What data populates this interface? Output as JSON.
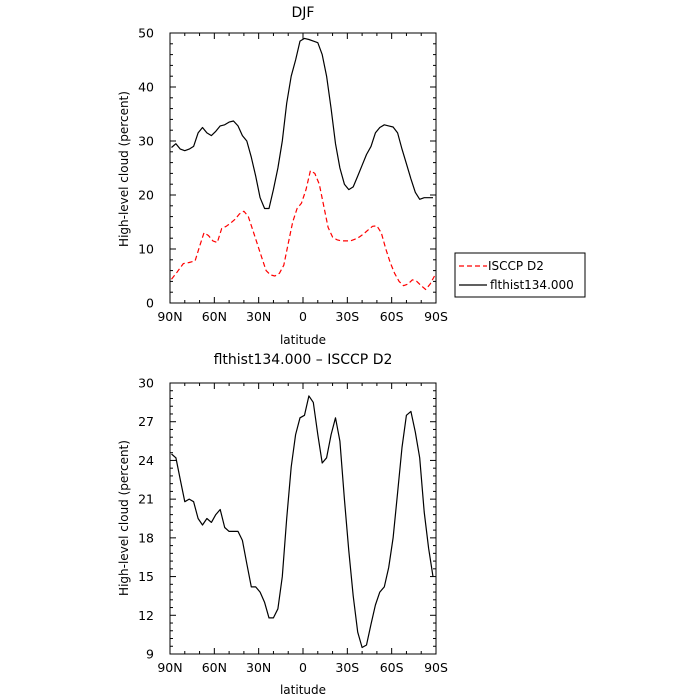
{
  "chart_data": [
    {
      "type": "line",
      "title": "DJF",
      "xlabel": "latitude",
      "ylabel": "High-level cloud (percent)",
      "xlim": [
        90,
        -90
      ],
      "ylim": [
        0,
        50
      ],
      "xticks": [
        90,
        60,
        30,
        0,
        -30,
        -60,
        -90
      ],
      "xtick_labels": [
        "90N",
        "60N",
        "30N",
        "0",
        "30S",
        "60S",
        "90S"
      ],
      "yticks": [
        0,
        10,
        20,
        30,
        40,
        50
      ],
      "ytick_labels": [
        "0",
        "10",
        "20",
        "30",
        "40",
        "50"
      ],
      "grid": false,
      "legend": "right",
      "series": [
        {
          "name": "ISCCP D2",
          "color": "#ff0000",
          "dash": "dashed",
          "x": [
            89,
            85,
            81,
            77,
            73,
            70,
            67,
            64,
            61,
            58,
            55,
            52,
            49,
            46,
            43,
            40,
            37,
            34,
            31,
            28,
            25,
            22,
            19,
            16,
            13,
            10,
            7,
            4,
            1,
            -2,
            -5,
            -8,
            -11,
            -14,
            -17,
            -20,
            -23,
            -26,
            -29,
            -32,
            -35,
            -38,
            -41,
            -44,
            -47,
            -50,
            -53,
            -56,
            -59,
            -62,
            -65,
            -68,
            -71,
            -74,
            -77,
            -80,
            -83,
            -86,
            -89
          ],
          "y": [
            4.4,
            5.8,
            7.3,
            7.5,
            7.8,
            10.5,
            13,
            12.5,
            11.5,
            11.2,
            13.8,
            14.2,
            14.8,
            15.5,
            16.5,
            17,
            16,
            13.5,
            11,
            8.5,
            6,
            5.2,
            5,
            5.5,
            7,
            11,
            15,
            17.5,
            18.5,
            21,
            24.5,
            24,
            22,
            18,
            14,
            12.2,
            11.7,
            11.5,
            11.5,
            11.5,
            11.8,
            12.2,
            12.8,
            13.5,
            14.2,
            14.3,
            13,
            10,
            7.5,
            5.5,
            4,
            3.2,
            3.5,
            4.3,
            4,
            3.2,
            2.5,
            3.5,
            5
          ]
        },
        {
          "name": "flthist134.000",
          "color": "#000000",
          "dash": "solid",
          "x": [
            89,
            86,
            83,
            80,
            77,
            74,
            71,
            68,
            65,
            62,
            59,
            56,
            53,
            50,
            47,
            44,
            41,
            38,
            35,
            32,
            29,
            26,
            23,
            20,
            17,
            14,
            11,
            8,
            5,
            2,
            -1,
            -4,
            -7,
            -10,
            -13,
            -16,
            -19,
            -22,
            -25,
            -28,
            -31,
            -34,
            -37,
            -40,
            -43,
            -46,
            -49,
            -52,
            -55,
            -58,
            -61,
            -64,
            -67,
            -70,
            -73,
            -76,
            -79,
            -82,
            -85,
            -88
          ],
          "y": [
            28.8,
            29.5,
            28.5,
            28.2,
            28.5,
            29,
            31.5,
            32.5,
            31.5,
            31,
            31.8,
            32.8,
            33,
            33.5,
            33.7,
            32.8,
            31,
            30,
            27,
            23.5,
            19.5,
            17.5,
            17.5,
            21,
            25,
            30,
            37,
            42,
            45,
            48.5,
            49,
            48.8,
            48.5,
            48.2,
            46,
            42,
            36,
            29.5,
            25,
            22,
            21,
            21.5,
            23.5,
            25.5,
            27.5,
            29,
            31.5,
            32.5,
            33,
            32.8,
            32.6,
            31.5,
            28.5,
            25.8,
            23,
            20.5,
            19.2,
            19.5,
            19.5,
            19.5
          ]
        }
      ]
    },
    {
      "type": "line",
      "title": "flthist134.000 – ISCCP D2",
      "xlabel": "latitude",
      "ylabel": "High-level cloud (percent)",
      "xlim": [
        90,
        -90
      ],
      "ylim": [
        9,
        30
      ],
      "xticks": [
        90,
        60,
        30,
        0,
        -30,
        -60,
        -90
      ],
      "xtick_labels": [
        "90N",
        "60N",
        "30N",
        "0",
        "30S",
        "60S",
        "90S"
      ],
      "yticks": [
        9,
        12,
        15,
        18,
        21,
        24,
        27,
        30
      ],
      "ytick_labels": [
        "9",
        "12",
        "15",
        "18",
        "21",
        "24",
        "27",
        "30"
      ],
      "grid": false,
      "series": [
        {
          "color": "#000000",
          "dash": "solid",
          "x": [
            89,
            86,
            83,
            80,
            77,
            74,
            71,
            68,
            65,
            62,
            59,
            56,
            53,
            50,
            47,
            44,
            41,
            38,
            35,
            32,
            29,
            26,
            23,
            20,
            17,
            14,
            11,
            8,
            5,
            2,
            -1,
            -4,
            -7,
            -10,
            -13,
            -16,
            -19,
            -22,
            -25,
            -28,
            -31,
            -34,
            -37,
            -40,
            -43,
            -46,
            -49,
            -52,
            -55,
            -58,
            -61,
            -64,
            -67,
            -70,
            -73,
            -76,
            -79,
            -82,
            -85,
            -88
          ],
          "y": [
            24.5,
            24.2,
            22.5,
            20.8,
            21,
            20.8,
            19.5,
            19,
            19.5,
            19.2,
            19.8,
            20.2,
            18.8,
            18.5,
            18.5,
            18.5,
            17.8,
            16,
            14.2,
            14.2,
            13.8,
            13,
            11.8,
            11.8,
            12.5,
            15,
            19.5,
            23.5,
            26,
            27.3,
            27.5,
            29,
            28.5,
            26,
            23.8,
            24.2,
            26,
            27.3,
            25.5,
            21,
            17,
            13.5,
            10.7,
            9.5,
            9.7,
            11.3,
            12.8,
            13.8,
            14.2,
            15.7,
            18,
            21.5,
            25,
            27.5,
            27.8,
            26.2,
            24.2,
            20,
            17.2,
            15
          ]
        }
      ]
    }
  ]
}
